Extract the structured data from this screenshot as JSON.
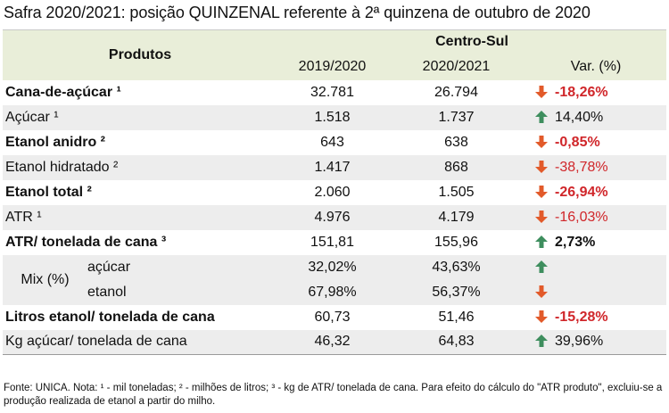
{
  "title": "Safra 2020/2021: posição QUINZENAL referente à 2ª quinzena de outubro de 2020",
  "header": {
    "produtos": "Produtos",
    "region": "Centro-Sul",
    "col1": "2019/2020",
    "col2": "2020/2021",
    "col3": "Var. (%)"
  },
  "rows": [
    {
      "label": "Cana-de-açúcar ¹",
      "bold": true,
      "v1": "32.781",
      "v2": "26.794",
      "var": "-18,26%",
      "dir": "down"
    },
    {
      "label": "Açúcar ¹",
      "bold": false,
      "v1": "1.518",
      "v2": "1.737",
      "var": "14,40%",
      "dir": "up"
    },
    {
      "label": "Etanol anidro ²",
      "bold": true,
      "v1": "643",
      "v2": "638",
      "var": "-0,85%",
      "dir": "down"
    },
    {
      "label": "Etanol hidratado ²",
      "bold": false,
      "v1": "1.417",
      "v2": "868",
      "var": "-38,78%",
      "dir": "down"
    },
    {
      "label": "Etanol total ²",
      "bold": true,
      "v1": "2.060",
      "v2": "1.505",
      "var": "-26,94%",
      "dir": "down"
    },
    {
      "label": "ATR ¹",
      "bold": false,
      "v1": "4.976",
      "v2": "4.179",
      "var": "-16,03%",
      "dir": "down"
    },
    {
      "label": "ATR/ tonelada de cana ³",
      "bold": true,
      "v1": "151,81",
      "v2": "155,96",
      "var": "2,73%",
      "dir": "up"
    }
  ],
  "mix": {
    "label": "Mix (%)",
    "rows": [
      {
        "label": "açúcar",
        "v1": "32,02%",
        "v2": "43,63%",
        "dir": "up"
      },
      {
        "label": "etanol",
        "v1": "67,98%",
        "v2": "56,37%",
        "dir": "down"
      }
    ]
  },
  "tail_rows": [
    {
      "label": "Litros etanol/ tonelada de cana",
      "bold": true,
      "v1": "60,73",
      "v2": "51,46",
      "var": "-15,28%",
      "dir": "down"
    },
    {
      "label": "Kg açúcar/ tonelada de cana",
      "bold": false,
      "v1": "46,32",
      "v2": "64,83",
      "var": "39,96%",
      "dir": "up"
    }
  ],
  "footnote": "Fonte: UNICA. Nota: ¹ - mil toneladas; ² - milhões de litros; ³ - kg de ATR/ tonelada de cana. Para efeito do cálculo do \"ATR produto\", excluiu-se a produção realizada de etanol a partir do milho.",
  "colors": {
    "up_arrow": "#3e8e5e",
    "down_arrow": "#e25a2a",
    "negative_text": "#d0262a",
    "header_bg": "#e9eed9",
    "stripe_bg": "#ededed"
  }
}
